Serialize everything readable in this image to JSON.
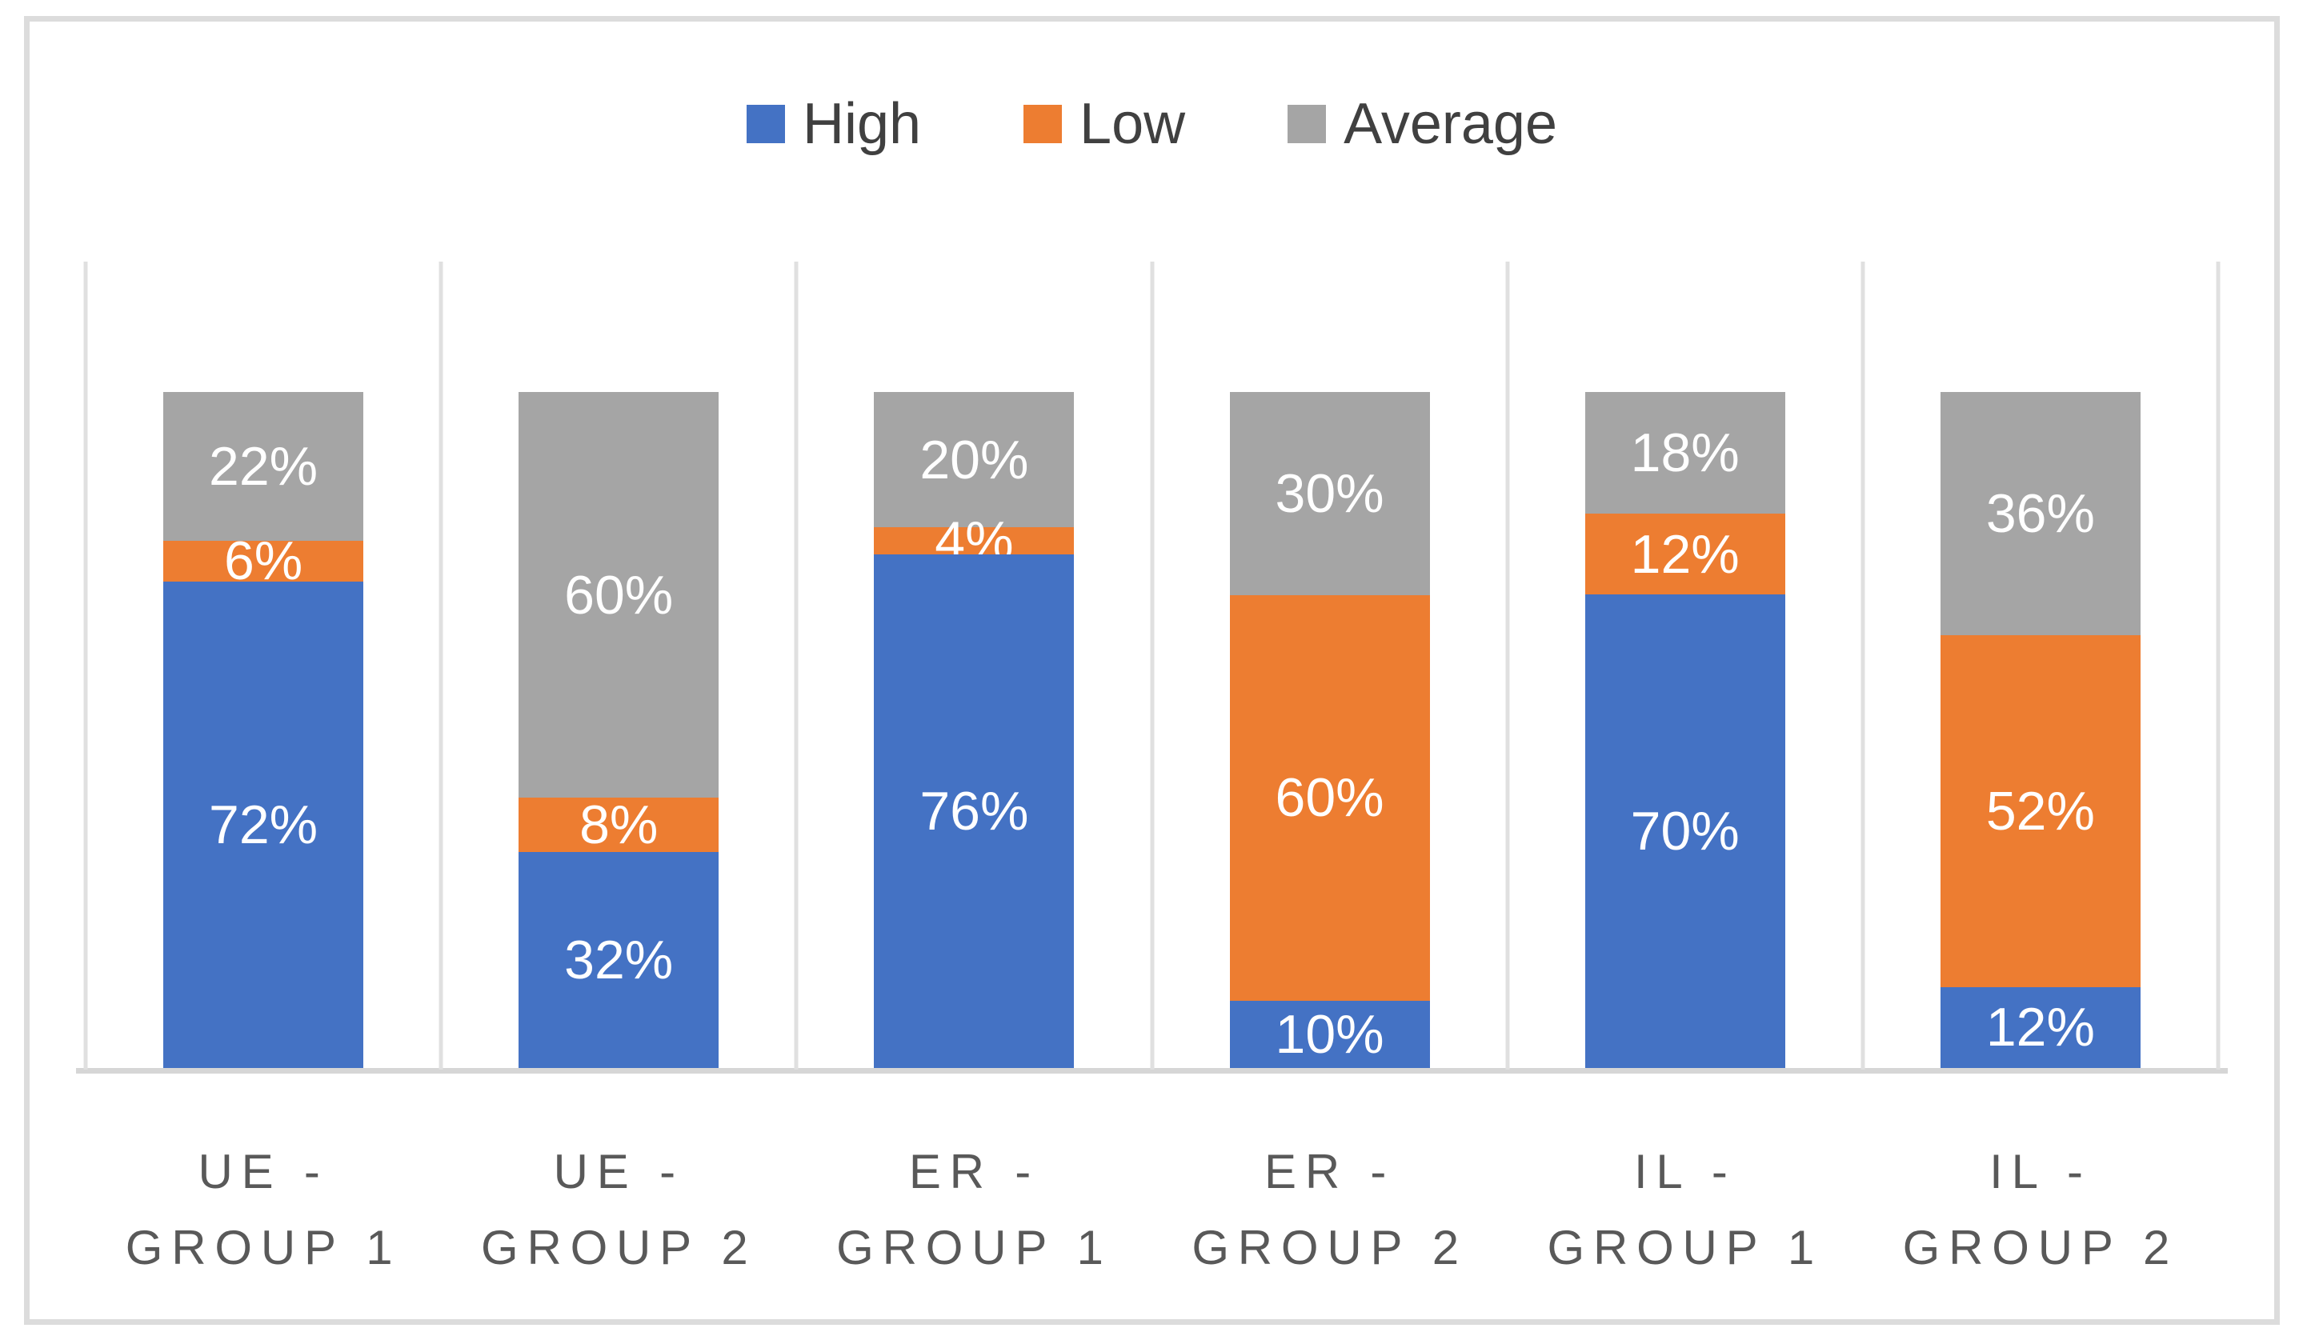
{
  "chart_data": {
    "type": "bar",
    "subtype": "stacked-100-percent-column",
    "title": "",
    "xlabel": "",
    "ylabel": "",
    "ylim": [
      0,
      100
    ],
    "grid": "vertical-category-separators",
    "legend_position": "top-center",
    "value_labels_format": "{v}%",
    "categories": [
      "UE - GROUP 1",
      "UE - GROUP 2",
      "ER - GROUP 1",
      "ER - GROUP 2",
      "IL - GROUP 1",
      "IL - GROUP 2"
    ],
    "category_lines": [
      [
        "UE -",
        "GROUP 1"
      ],
      [
        "UE -",
        "GROUP 2"
      ],
      [
        "ER -",
        "GROUP 1"
      ],
      [
        "ER -",
        "GROUP 2"
      ],
      [
        "IL -",
        "GROUP 1"
      ],
      [
        "IL -",
        "GROUP 2"
      ]
    ],
    "series": [
      {
        "name": "High",
        "color": "#4472C4",
        "values": [
          72,
          32,
          76,
          10,
          70,
          12
        ]
      },
      {
        "name": "Low",
        "color": "#ED7D31",
        "values": [
          6,
          8,
          4,
          60,
          12,
          52
        ]
      },
      {
        "name": "Average",
        "color": "#A5A5A5",
        "values": [
          22,
          60,
          20,
          30,
          18,
          36
        ]
      }
    ]
  },
  "legend": {
    "items": [
      {
        "label": "High",
        "color": "#4472C4"
      },
      {
        "label": "Low",
        "color": "#ED7D31"
      },
      {
        "label": "Average",
        "color": "#A5A5A5"
      }
    ]
  },
  "style_colors": {
    "frame_border": "#DCDCDC",
    "axis_line": "#D6D6D6",
    "category_separator": "#E0E0E0",
    "category_label_text": "#595959",
    "legend_text": "#404040",
    "bar_value_text": "#FFFFFF",
    "background": "#FFFFFF"
  }
}
